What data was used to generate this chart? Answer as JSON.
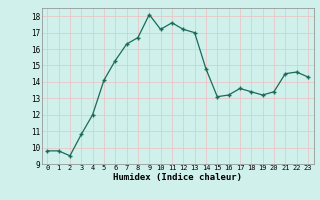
{
  "x": [
    0,
    1,
    2,
    3,
    4,
    5,
    6,
    7,
    8,
    9,
    10,
    11,
    12,
    13,
    14,
    15,
    16,
    17,
    18,
    19,
    20,
    21,
    22,
    23
  ],
  "y": [
    9.8,
    9.8,
    9.5,
    10.8,
    12.0,
    14.1,
    15.3,
    16.3,
    16.7,
    18.1,
    17.2,
    17.6,
    17.2,
    17.0,
    14.8,
    13.1,
    13.2,
    13.6,
    13.4,
    13.2,
    13.4,
    14.5,
    14.6,
    14.3
  ],
  "xlim": [
    -0.5,
    23.5
  ],
  "ylim": [
    9,
    18.5
  ],
  "yticks": [
    9,
    10,
    11,
    12,
    13,
    14,
    15,
    16,
    17,
    18
  ],
  "xticks": [
    0,
    1,
    2,
    3,
    4,
    5,
    6,
    7,
    8,
    9,
    10,
    11,
    12,
    13,
    14,
    15,
    16,
    17,
    18,
    19,
    20,
    21,
    22,
    23
  ],
  "xlabel": "Humidex (Indice chaleur)",
  "line_color": "#1a6b5a",
  "marker": "D",
  "marker_size": 2.0,
  "background_color": "#cff0eb",
  "grid_color": "#e8c8c8",
  "title": ""
}
